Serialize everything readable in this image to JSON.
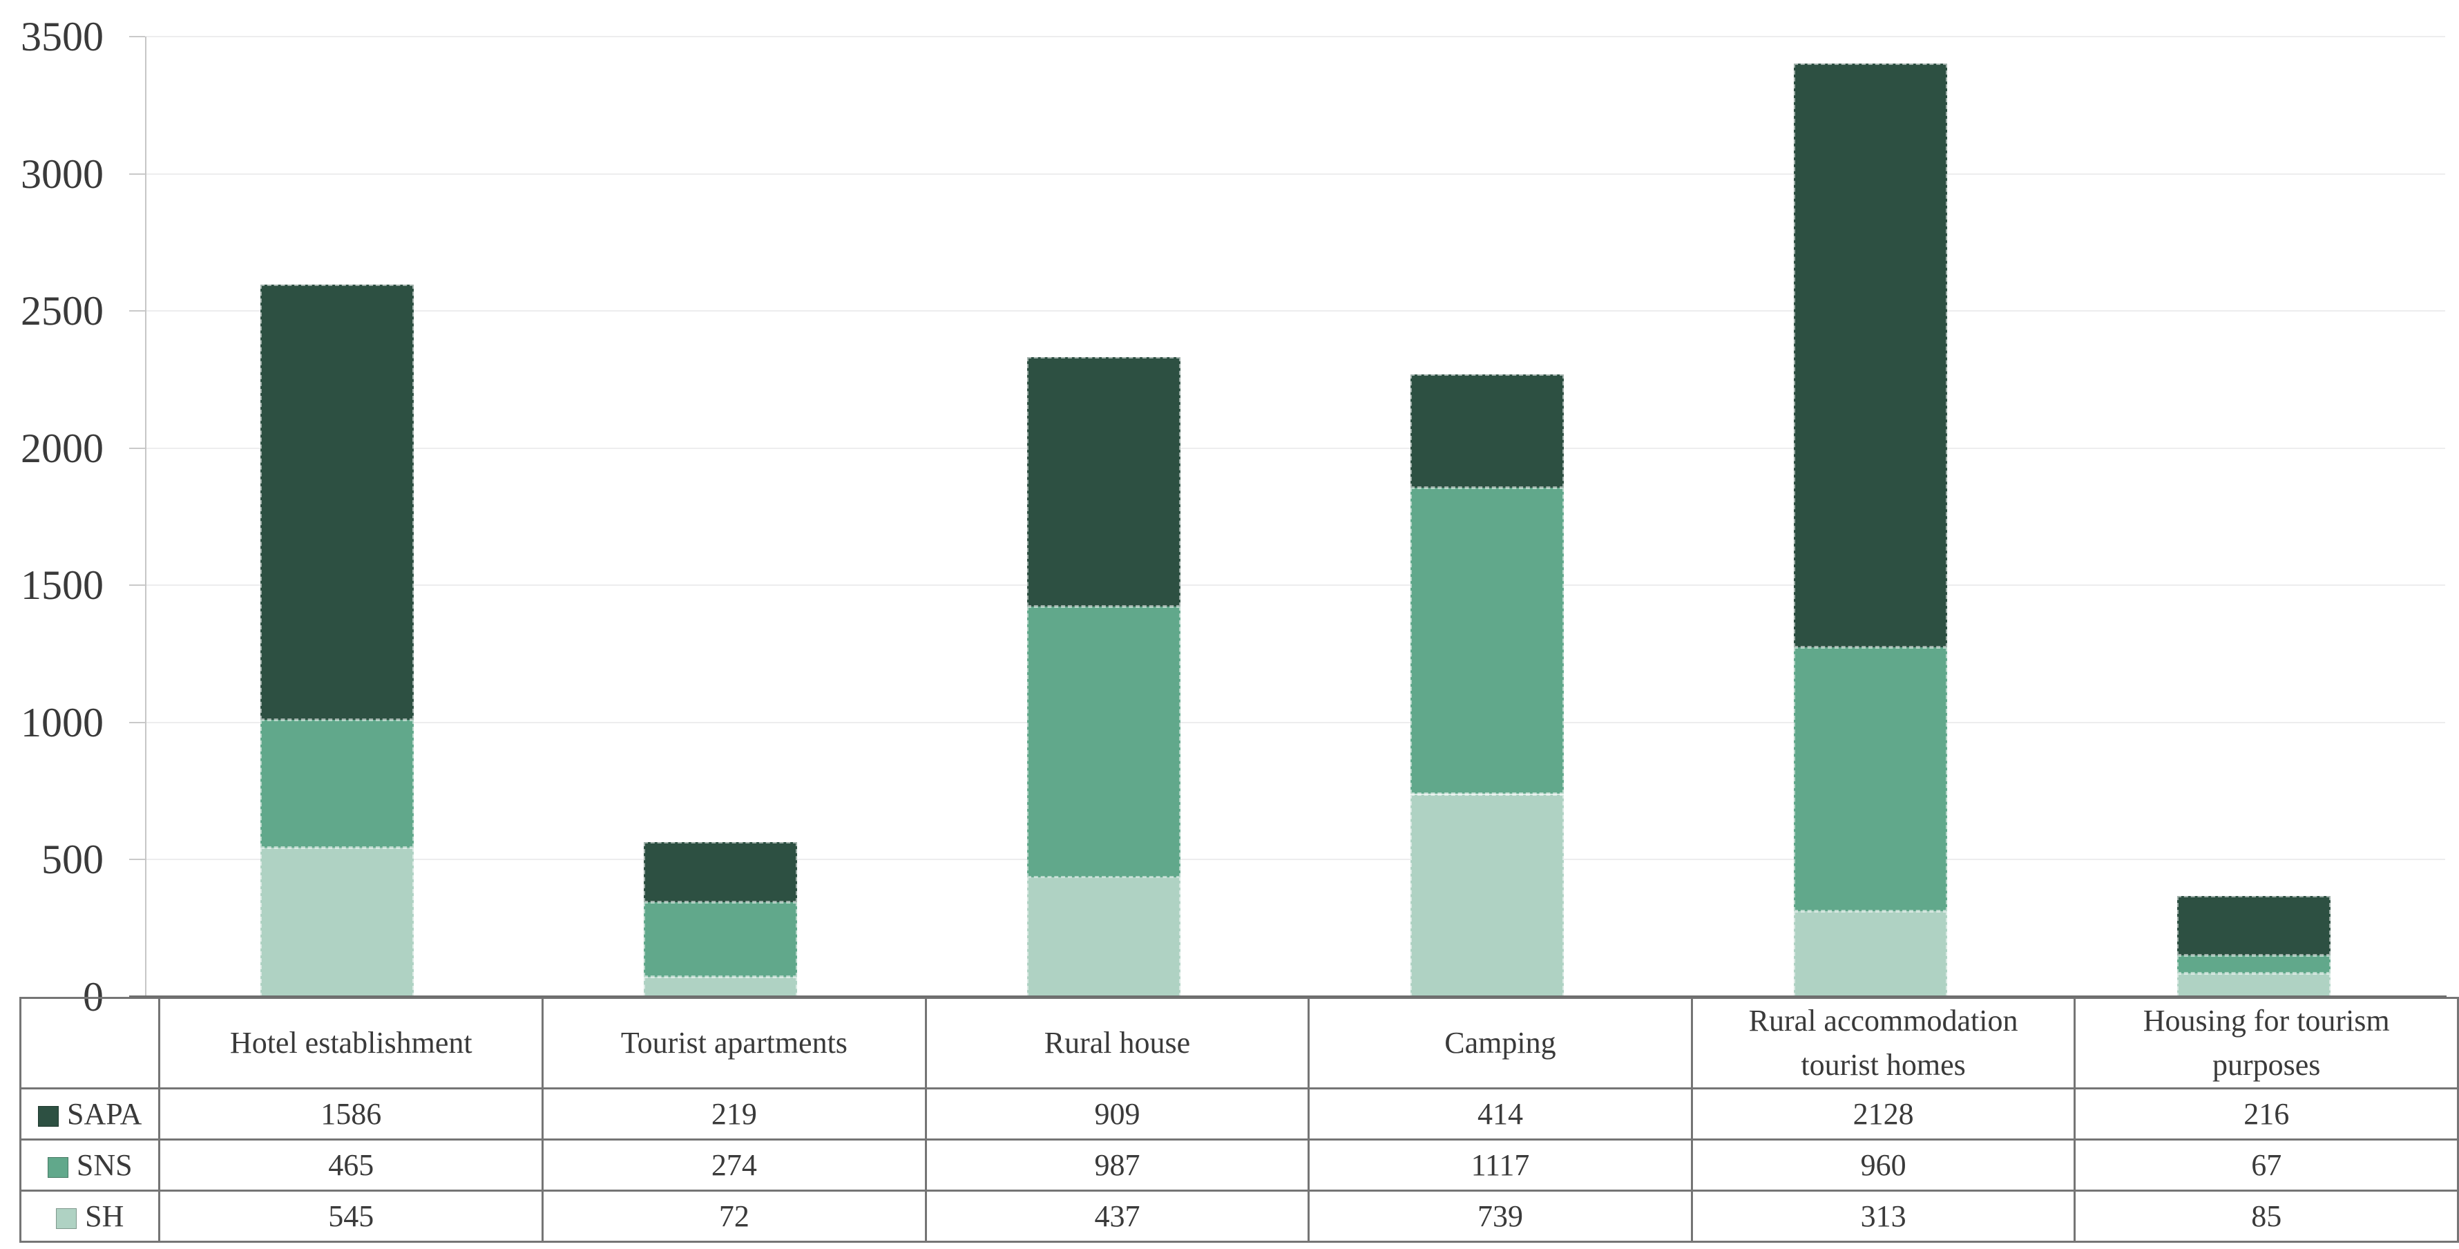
{
  "chart_data": {
    "type": "bar",
    "stacked": true,
    "title": "",
    "xlabel": "",
    "ylabel": "",
    "ylim": [
      0,
      3500
    ],
    "ytick_interval": 500,
    "ytick_labels": [
      "0",
      "500",
      "1000",
      "1500",
      "2000",
      "2500",
      "3000",
      "3500"
    ],
    "grid": true,
    "legend_position": "table-left-column",
    "categories": [
      "Hotel establishment",
      "Tourist apartments",
      "Rural house",
      "Camping",
      "Rural accommodation tourist homes",
      "Housing for tourism purposes"
    ],
    "series": [
      {
        "name": "SAPA",
        "color": "#2d5042",
        "values": [
          1586,
          219,
          909,
          414,
          2128,
          216
        ]
      },
      {
        "name": "SNS",
        "color": "#61a88b",
        "values": [
          465,
          274,
          987,
          1117,
          960,
          67
        ]
      },
      {
        "name": "SH",
        "color": "#afd2c3",
        "values": [
          545,
          72,
          437,
          739,
          313,
          85
        ]
      }
    ],
    "stack_order_bottom_to_top": [
      "SH",
      "SNS",
      "SAPA"
    ],
    "totals_by_category": [
      2596,
      565,
      2333,
      2270,
      3401,
      368
    ]
  }
}
